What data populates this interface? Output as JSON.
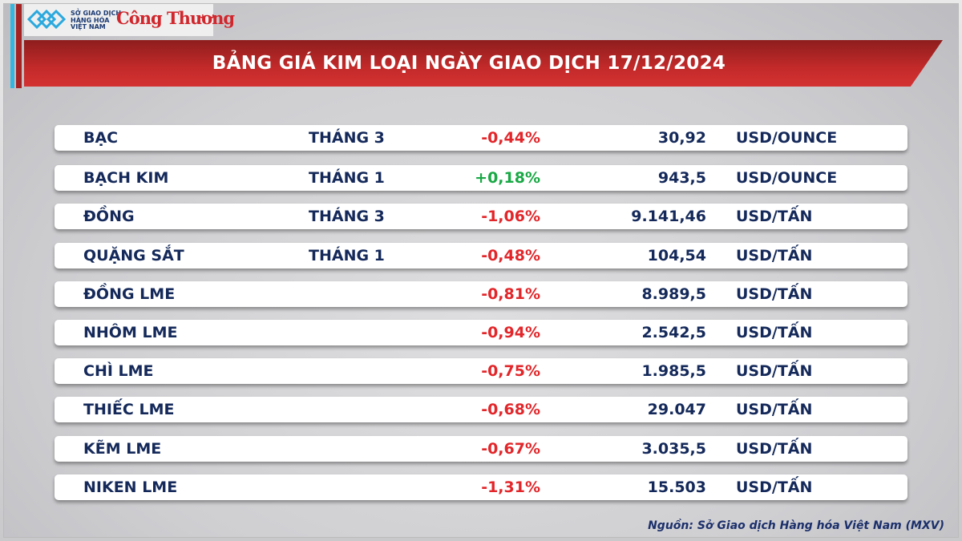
{
  "logo": {
    "exchange_text": [
      "SỞ GIAO DỊCH",
      "HÀNG HÓA",
      "VIỆT NAM"
    ],
    "newspaper": "Công Thương"
  },
  "title": "BẢNG GIÁ KIM LOẠI NGÀY GIAO DỊCH 17/12/2024",
  "colors": {
    "header": "#c42a2a",
    "negative": "#e2262a",
    "positive": "#19a845",
    "text": "#14295a"
  },
  "rows": [
    {
      "name": "BẠC",
      "month": "THÁNG 3",
      "change": "-0,44%",
      "price": "30,92",
      "unit": "USD/OUNCE"
    },
    {
      "name": "BẠCH KIM",
      "month": "THÁNG 1",
      "change": "+0,18%",
      "price": "943,5",
      "unit": "USD/OUNCE"
    },
    {
      "name": "ĐỒNG",
      "month": "THÁNG 3",
      "change": "-1,06%",
      "price": "9.141,46",
      "unit": "USD/TẤN"
    },
    {
      "name": "QUẶNG SẮT",
      "month": "THÁNG 1",
      "change": "-0,48%",
      "price": "104,54",
      "unit": "USD/TẤN"
    },
    {
      "name": "ĐỒNG LME",
      "month": "",
      "change": "-0,81%",
      "price": "8.989,5",
      "unit": "USD/TẤN"
    },
    {
      "name": "NHÔM LME",
      "month": "",
      "change": "-0,94%",
      "price": "2.542,5",
      "unit": "USD/TẤN"
    },
    {
      "name": "CHÌ LME",
      "month": "",
      "change": "-0,75%",
      "price": "1.985,5",
      "unit": "USD/TẤN"
    },
    {
      "name": "THIẾC LME",
      "month": "",
      "change": "-0,68%",
      "price": "29.047",
      "unit": "USD/TẤN"
    },
    {
      "name": "KẼM LME",
      "month": "",
      "change": "-0,67%",
      "price": "3.035,5",
      "unit": "USD/TẤN"
    },
    {
      "name": "NIKEN LME",
      "month": "",
      "change": "-1,31%",
      "price": "15.503",
      "unit": "USD/TẤN"
    }
  ],
  "source": "Nguồn: Sở Giao dịch Hàng hóa Việt Nam (MXV)"
}
